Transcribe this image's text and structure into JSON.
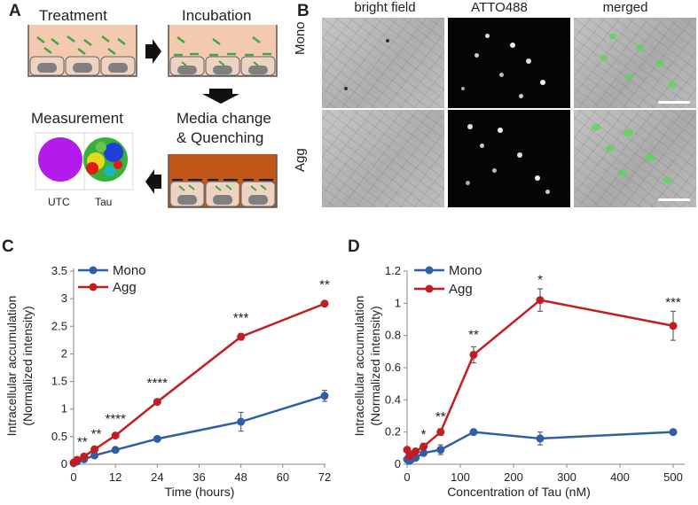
{
  "panels": {
    "a": "A",
    "b": "B",
    "c": "C",
    "d": "D"
  },
  "schematic": {
    "treatment": "Treatment",
    "incubation": "Incubation",
    "media_change_line1": "Media change",
    "media_change_line2": "& Quenching",
    "measurement": "Measurement",
    "utc": "UTC",
    "tau": "Tau",
    "colors": {
      "medium": "#f3c9b0",
      "medium_quench": "#c1581a",
      "tau_dash": "#3fa83f",
      "nucleus": "#808080",
      "cell": "#efd3c2"
    }
  },
  "microscopy": {
    "columns": [
      "bright field",
      "ATTO488",
      "merged"
    ],
    "rows": [
      "Mono",
      "Agg"
    ]
  },
  "chart_data": [
    {
      "type": "line",
      "panel": "C",
      "xlabel": "Time (hours)",
      "ylabel_line1": "Intracellular accumulation",
      "ylabel_line2": "(Normalized intensity)",
      "xlim": [
        0,
        72
      ],
      "ylim": [
        0,
        3.5
      ],
      "xticks": [
        0,
        12,
        24,
        36,
        48,
        60,
        72
      ],
      "yticks": [
        0,
        0.5,
        1,
        1.5,
        2,
        2.5,
        3,
        3.5
      ],
      "legend_position": "top-left",
      "series": [
        {
          "name": "Mono",
          "color": "#2e5fa6",
          "x": [
            0,
            1,
            3,
            6,
            12,
            24,
            48,
            72
          ],
          "y": [
            0.02,
            0.05,
            0.09,
            0.16,
            0.26,
            0.46,
            0.77,
            1.24
          ],
          "err": [
            0.01,
            0.01,
            0.02,
            0.02,
            0.03,
            0.03,
            0.17,
            0.1
          ]
        },
        {
          "name": "Agg",
          "color": "#c21d22",
          "x": [
            0,
            1,
            3,
            6,
            12,
            24,
            48,
            72
          ],
          "y": [
            0.03,
            0.08,
            0.14,
            0.27,
            0.52,
            1.13,
            2.31,
            2.91
          ],
          "err": [
            0.01,
            0.01,
            0.02,
            0.02,
            0.03,
            0.03,
            0.06,
            0.04
          ]
        }
      ],
      "annotations": [
        {
          "text": "**",
          "x": 2.5,
          "y": 0.33
        },
        {
          "text": "**",
          "x": 6.5,
          "y": 0.47
        },
        {
          "text": "****",
          "x": 12,
          "y": 0.75
        },
        {
          "text": "****",
          "x": 24,
          "y": 1.4
        },
        {
          "text": "***",
          "x": 48,
          "y": 2.58
        },
        {
          "text": "**",
          "x": 72,
          "y": 3.18
        }
      ]
    },
    {
      "type": "line",
      "panel": "D",
      "xlabel": "Concentration of Tau (nM)",
      "ylabel_line1": "Intracellular accumulation",
      "ylabel_line2": "(Normalized intensity)",
      "xlim": [
        0,
        500
      ],
      "ylim": [
        0,
        1.2
      ],
      "xticks": [
        0,
        100,
        200,
        300,
        400,
        500
      ],
      "yticks": [
        0,
        0.2,
        0.4,
        0.6,
        0.8,
        1,
        1.2
      ],
      "legend_position": "top-left",
      "series": [
        {
          "name": "Mono",
          "color": "#2e5fa6",
          "x": [
            0,
            4,
            8,
            16,
            31,
            63,
            125,
            250,
            500
          ],
          "y": [
            0.03,
            0.02,
            0.03,
            0.04,
            0.07,
            0.09,
            0.2,
            0.16,
            0.2
          ],
          "err": [
            0.01,
            0.01,
            0.01,
            0.01,
            0.01,
            0.03,
            0.01,
            0.04,
            0.01
          ]
        },
        {
          "name": "Agg",
          "color": "#c21d22",
          "x": [
            0,
            4,
            8,
            16,
            31,
            63,
            125,
            250,
            500
          ],
          "y": [
            0.09,
            0.05,
            0.06,
            0.08,
            0.11,
            0.2,
            0.68,
            1.02,
            0.86
          ],
          "err": [
            0.01,
            0.01,
            0.01,
            0.01,
            0.02,
            0.02,
            0.05,
            0.07,
            0.09
          ]
        }
      ],
      "annotations": [
        {
          "text": "*",
          "x": 31,
          "y": 0.16
        },
        {
          "text": "**",
          "x": 63,
          "y": 0.27
        },
        {
          "text": "**",
          "x": 125,
          "y": 0.78
        },
        {
          "text": "*",
          "x": 250,
          "y": 1.12
        },
        {
          "text": "***",
          "x": 500,
          "y": 0.98
        }
      ]
    }
  ]
}
